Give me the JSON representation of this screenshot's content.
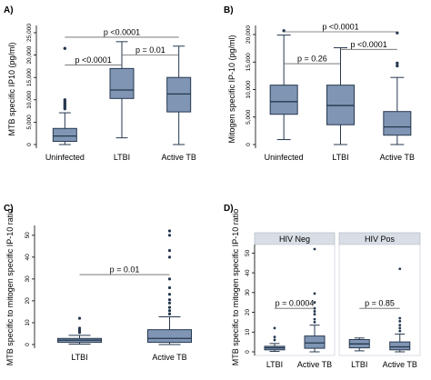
{
  "chart_data": [
    {
      "type": "box",
      "panel": "A)",
      "ylabel": "MTB specific IP10 (pg/ml)",
      "ylim": [
        0,
        25000
      ],
      "yticks": [
        0,
        5000,
        10000,
        15000,
        20000,
        25000
      ],
      "ytick_labels": [
        "0",
        "5,000",
        "10,000",
        "15,000",
        "20,000",
        "25,000"
      ],
      "categories": [
        "Uninfected",
        "LTBI",
        "Active TB"
      ],
      "boxes": [
        {
          "whisker_low": 0,
          "q1": 700,
          "median": 1900,
          "q3": 3600,
          "whisker_high": 7100,
          "outliers": [
            8000,
            8400,
            8800,
            9200,
            9600,
            10000,
            21500
          ]
        },
        {
          "whisker_low": 1500,
          "q1": 10300,
          "median": 12200,
          "q3": 17000,
          "whisker_high": 23000,
          "outliers": []
        },
        {
          "whisker_low": 0,
          "q1": 7300,
          "median": 11300,
          "q3": 15000,
          "whisker_high": 22000,
          "outliers": []
        }
      ],
      "annotations": [
        {
          "from": 0,
          "to": 2,
          "level": 24000,
          "text": "p <0.0001"
        },
        {
          "from": 0,
          "to": 1,
          "level": 17800,
          "text": "p <0.0001"
        },
        {
          "from": 1,
          "to": 2,
          "level": 20000,
          "text": "p = 0.01"
        }
      ]
    },
    {
      "type": "box",
      "panel": "B)",
      "ylabel": "Mitogen specific IP-10 (pg/ml)",
      "ylim": [
        0,
        20000
      ],
      "yticks": [
        0,
        5000,
        10000,
        15000,
        20000
      ],
      "ytick_labels": [
        "0",
        "5,000",
        "10,000",
        "15,000",
        "20,000"
      ],
      "categories": [
        "Uninfected",
        "LTBI",
        "Active TB"
      ],
      "boxes": [
        {
          "whisker_low": 900,
          "q1": 5500,
          "median": 7800,
          "q3": 10800,
          "whisker_high": 19900,
          "outliers": [
            20700
          ]
        },
        {
          "whisker_low": 0,
          "q1": 3600,
          "median": 7100,
          "q3": 10800,
          "whisker_high": 17600,
          "outliers": []
        },
        {
          "whisker_low": 0,
          "q1": 1700,
          "median": 3200,
          "q3": 6000,
          "whisker_high": 12200,
          "outliers": [
            14300,
            14800,
            20300
          ]
        }
      ],
      "annotations": [
        {
          "from": 0,
          "to": 2,
          "level": 20500,
          "text": "p <0.0001"
        },
        {
          "from": 0,
          "to": 1,
          "level": 14700,
          "text": "p = 0.26"
        },
        {
          "from": 1,
          "to": 2,
          "level": 17300,
          "text": "p <0.0001"
        }
      ]
    },
    {
      "type": "box",
      "panel": "C)",
      "ylabel": "MTB specific to mitogen specific IP-10 ratio",
      "ylim": [
        0,
        52
      ],
      "yticks": [
        0,
        10,
        20,
        30,
        40,
        50
      ],
      "ytick_labels": [
        "0",
        "10",
        "20",
        "30",
        "40",
        "50"
      ],
      "categories": [
        "LTBI",
        "Active TB"
      ],
      "boxes": [
        {
          "whisker_low": 0.2,
          "q1": 1.0,
          "median": 2.0,
          "q3": 2.8,
          "whisker_high": 4.2,
          "outliers": [
            5.5,
            6.5,
            7.5,
            12
          ]
        },
        {
          "whisker_low": 0,
          "q1": 1.0,
          "median": 2.8,
          "q3": 6.8,
          "whisker_high": 12.7,
          "outliers": [
            14,
            15.5,
            17,
            19,
            20.5,
            23,
            26,
            30,
            40,
            43,
            50,
            52
          ]
        }
      ],
      "annotations": [
        {
          "from": 0,
          "to": 1,
          "level": 32,
          "text": "p = 0.01"
        }
      ]
    },
    {
      "type": "box",
      "panel": "D)",
      "ylabel": "MTB specific to mitogen specific IP-10 ratio",
      "ylim": [
        0,
        52
      ],
      "yticks": [
        0,
        10,
        20,
        30,
        40,
        50
      ],
      "ytick_labels": [
        "0",
        "10",
        "20",
        "30",
        "40",
        "50"
      ],
      "facets": [
        {
          "title": "HIV Neg",
          "categories": [
            "LTBI",
            "Active TB"
          ],
          "boxes": [
            {
              "whisker_low": 0.2,
              "q1": 1.0,
              "median": 2.0,
              "q3": 2.8,
              "whisker_high": 4.2,
              "outliers": [
                6,
                7.5,
                12
              ]
            },
            {
              "whisker_low": 0,
              "q1": 1.8,
              "median": 4.5,
              "q3": 8.0,
              "whisker_high": 13.5,
              "outliers": [
                15,
                16.5,
                19,
                20.5,
                22,
                25,
                29.5,
                52
              ]
            }
          ],
          "annotations": [
            {
              "from": 0,
              "to": 1,
              "level": 22,
              "text": "p = 0.0004"
            }
          ]
        },
        {
          "title": "HIV Pos",
          "categories": [
            "LTBI",
            "Active TB"
          ],
          "boxes": [
            {
              "whisker_low": 0.5,
              "q1": 2.0,
              "median": 4.0,
              "q3": 6.2,
              "whisker_high": 7.0,
              "outliers": []
            },
            {
              "whisker_low": 0,
              "q1": 1.0,
              "median": 2.5,
              "q3": 5.0,
              "whisker_high": 9.0,
              "outliers": [
                10.5,
                12,
                13.5,
                15.5,
                17,
                42
              ]
            }
          ],
          "annotations": [
            {
              "from": 0,
              "to": 1,
              "level": 22,
              "text": "p = 0.85"
            }
          ]
        }
      ]
    }
  ]
}
